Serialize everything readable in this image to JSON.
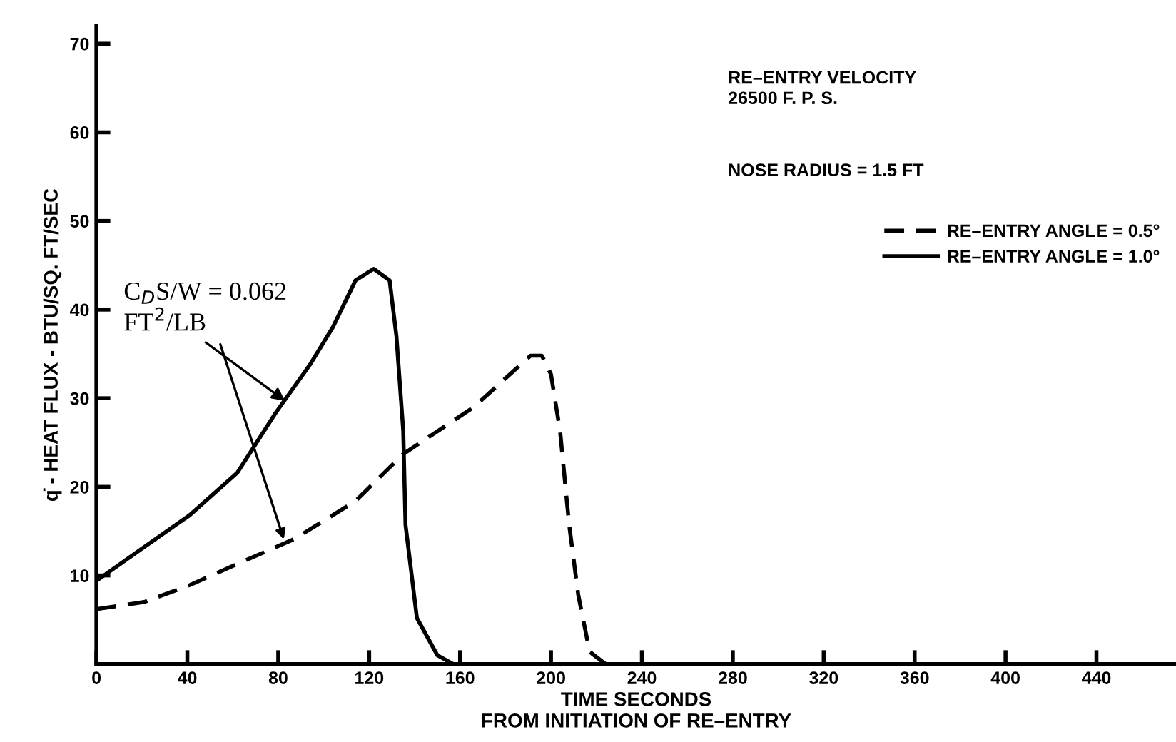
{
  "chart_data": {
    "type": "line",
    "xlabel": "TIME SECONDS\nFROM INITIATION OF RE–ENTRY",
    "ylabel": "q̇ - HEAT FLUX - BTU/SQ. FT/SEC",
    "xlim": [
      0,
      475
    ],
    "ylim": [
      0,
      72
    ],
    "xticks": [
      0,
      40,
      80,
      120,
      160,
      200,
      240,
      280,
      320,
      360,
      400,
      440
    ],
    "yticks": [
      10,
      20,
      30,
      40,
      50,
      60,
      70
    ],
    "grid": false,
    "legend": "top right",
    "marker": "none",
    "series": [
      {
        "name": "RE–ENTRY ANGLE = 0.5°",
        "color": "#000000",
        "line_style": "dashed",
        "x": [
          0,
          21,
          41,
          62,
          87,
          114,
          135,
          166,
          191,
          196,
          200,
          204,
          208,
          212,
          217,
          224
        ],
        "values": [
          6.2,
          7,
          8.9,
          11.3,
          14.1,
          18.4,
          23.7,
          29,
          34.8,
          34.8,
          32.7,
          26.3,
          15.7,
          7.8,
          1.4,
          0
        ]
      },
      {
        "name": "RE–ENTRY ANGLE = 1.0°",
        "color": "#000000",
        "line_style": "solid",
        "x": [
          0,
          21,
          41,
          62,
          79,
          94,
          104,
          114,
          122,
          129,
          132,
          135,
          136,
          141,
          150,
          157
        ],
        "values": [
          9.4,
          13.2,
          16.8,
          21.6,
          28.4,
          33.8,
          38,
          43.3,
          44.6,
          43.3,
          37,
          26.3,
          15.7,
          5.2,
          1,
          0
        ]
      }
    ],
    "annotations": [
      "RE–ENTRY VELOCITY\n26500 F. P. S.",
      "NOSE RADIUS = 1.5 FT",
      {
        "text": "C$_{D}$S/W = 0.062\nFT$^{2}$/LB",
        "x": 83,
        "y": 29.7
      }
    ]
  }
}
